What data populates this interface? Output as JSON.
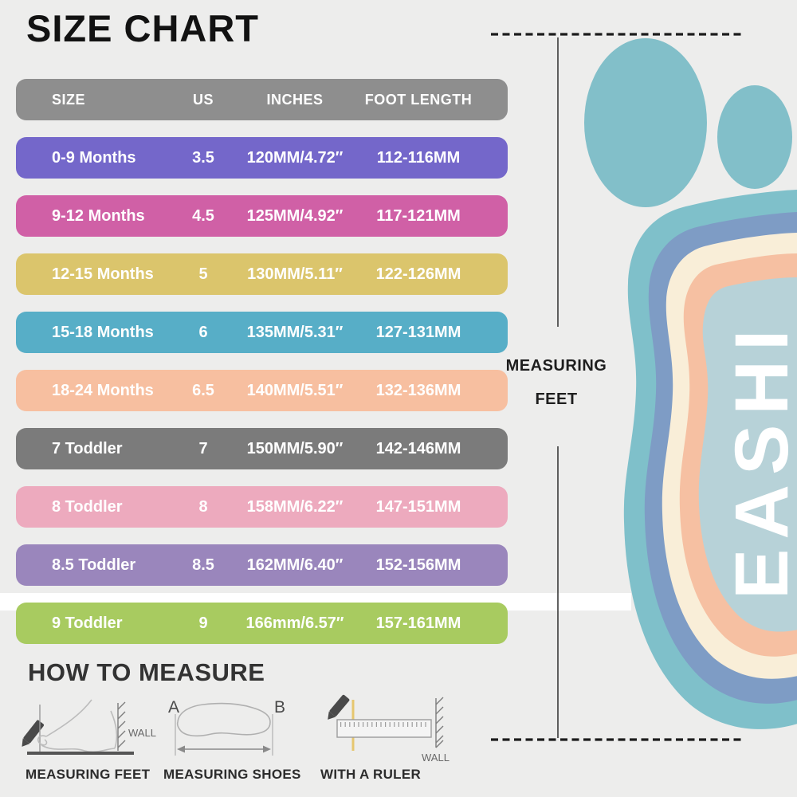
{
  "title": "SIZE CHART",
  "background_color": "#ededec",
  "size_table": {
    "header_color": "#8e8e8e",
    "headers": [
      "SIZE",
      "US",
      "INCHES",
      "FOOT LENGTH"
    ],
    "rows": [
      {
        "size": "0-9 Months",
        "us": "3.5",
        "inches": "120MM/4.72″",
        "foot_length": "112-116MM",
        "color": "#7467ca"
      },
      {
        "size": "9-12 Months",
        "us": "4.5",
        "inches": "125MM/4.92″",
        "foot_length": "117-121MM",
        "color": "#d060a6"
      },
      {
        "size": "12-15 Months",
        "us": "5",
        "inches": "130MM/5.11″",
        "foot_length": "122-126MM",
        "color": "#dbc56c"
      },
      {
        "size": "15-18 Months",
        "us": "6",
        "inches": "135MM/5.31″",
        "foot_length": "127-131MM",
        "color": "#57aec7"
      },
      {
        "size": "18-24 Months",
        "us": "6.5",
        "inches": "140MM/5.51″",
        "foot_length": "132-136MM",
        "color": "#f7bfa0"
      },
      {
        "size": "7 Toddler",
        "us": "7",
        "inches": "150MM/5.90″",
        "foot_length": "142-146MM",
        "color": "#7b7b7b"
      },
      {
        "size": "8 Toddler",
        "us": "8",
        "inches": "158MM/6.22″",
        "foot_length": "147-151MM",
        "color": "#edaabe"
      },
      {
        "size": "8.5 Toddler",
        "us": "8.5",
        "inches": "162MM/6.40″",
        "foot_length": "152-156MM",
        "color": "#9a86bc"
      },
      {
        "size": "9 Toddler",
        "us": "9",
        "inches": "166mm/6.57″",
        "foot_length": "157-161MM",
        "color": "#a8cb60"
      }
    ]
  },
  "chart_data": {
    "type": "table",
    "title": "SIZE CHART",
    "columns": [
      "SIZE",
      "US",
      "INCHES",
      "FOOT LENGTH"
    ],
    "rows": [
      [
        "0-9 Months",
        "3.5",
        "120MM/4.72″",
        "112-116MM"
      ],
      [
        "9-12 Months",
        "4.5",
        "125MM/4.92″",
        "117-121MM"
      ],
      [
        "12-15 Months",
        "5",
        "130MM/5.11″",
        "122-126MM"
      ],
      [
        "15-18 Months",
        "6",
        "135MM/5.31″",
        "127-131MM"
      ],
      [
        "18-24 Months",
        "6.5",
        "140MM/5.51″",
        "132-136MM"
      ],
      [
        "7 Toddler",
        "7",
        "150MM/5.90″",
        "142-146MM"
      ],
      [
        "8 Toddler",
        "8",
        "158MM/6.22″",
        "147-151MM"
      ],
      [
        "8.5 Toddler",
        "8.5",
        "162MM/6.40″",
        "152-156MM"
      ],
      [
        "9 Toddler",
        "9",
        "166mm/6.57″",
        "157-161MM"
      ]
    ]
  },
  "foot_diagram": {
    "label_line1": "MEASURING",
    "label_line2": "FEET",
    "brand_text": "EASHI",
    "colors": {
      "toe": "#82bfc9",
      "ring_outer": "#7fc0ca",
      "ring_blue": "#7e9cc5",
      "ring_cream": "#f9eed8",
      "ring_peach": "#f6c0a2",
      "center": "#b7d2d8"
    }
  },
  "how_to_measure": {
    "title": "HOW TO MEASURE",
    "items": [
      {
        "caption": "MEASURING FEET",
        "wall_label": "WALL"
      },
      {
        "caption": "MEASURING SHOES",
        "point_a": "A",
        "point_b": "B"
      },
      {
        "caption": "WITH A RULER",
        "wall_label": "WALL"
      }
    ]
  },
  "icons": [
    "pencil-icon",
    "wall-hatch-icon",
    "foot-outline-icon",
    "shoe-outline-icon",
    "ruler-icon",
    "measure-arrow-icon",
    "foot-illustration",
    "dashed-guide-line",
    "vertical-guide-line"
  ]
}
